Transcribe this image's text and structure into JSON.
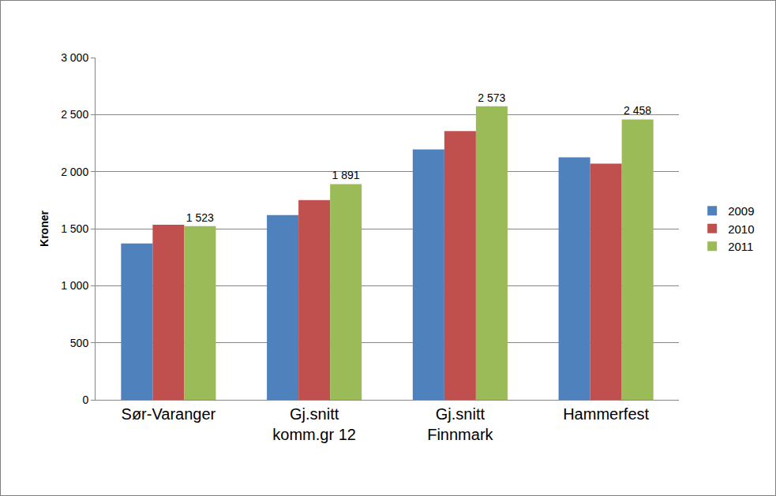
{
  "chart_data": {
    "type": "bar",
    "y_label": "Kroner",
    "categories": [
      "Sør-Varanger",
      "Gj.snitt komm.gr 12",
      "Gj.snitt Finnmark",
      "Hammerfest"
    ],
    "series": [
      {
        "name": "2009",
        "color": "#4f81bd",
        "values": [
          1370,
          1620,
          2195,
          2125
        ]
      },
      {
        "name": "2010",
        "color": "#c0504d",
        "values": [
          1535,
          1750,
          2355,
          2070
        ]
      },
      {
        "name": "2011",
        "color": "#9bbb59",
        "values": [
          1523,
          1891,
          2573,
          2458
        ],
        "data_labels": true,
        "value_labels": [
          "1 523",
          "1 891",
          "2 573",
          "2 458"
        ]
      }
    ],
    "ylim": [
      0,
      3000
    ],
    "yticks": [
      {
        "value": 0,
        "label": "0"
      },
      {
        "value": 500,
        "label": "500"
      },
      {
        "value": 1000,
        "label": "1 000"
      },
      {
        "value": 1500,
        "label": "1 500"
      },
      {
        "value": 2000,
        "label": "2 000"
      },
      {
        "value": 2500,
        "label": "2 500"
      },
      {
        "value": 3000,
        "label": "3 000"
      }
    ],
    "grid": true,
    "legend": "right"
  }
}
